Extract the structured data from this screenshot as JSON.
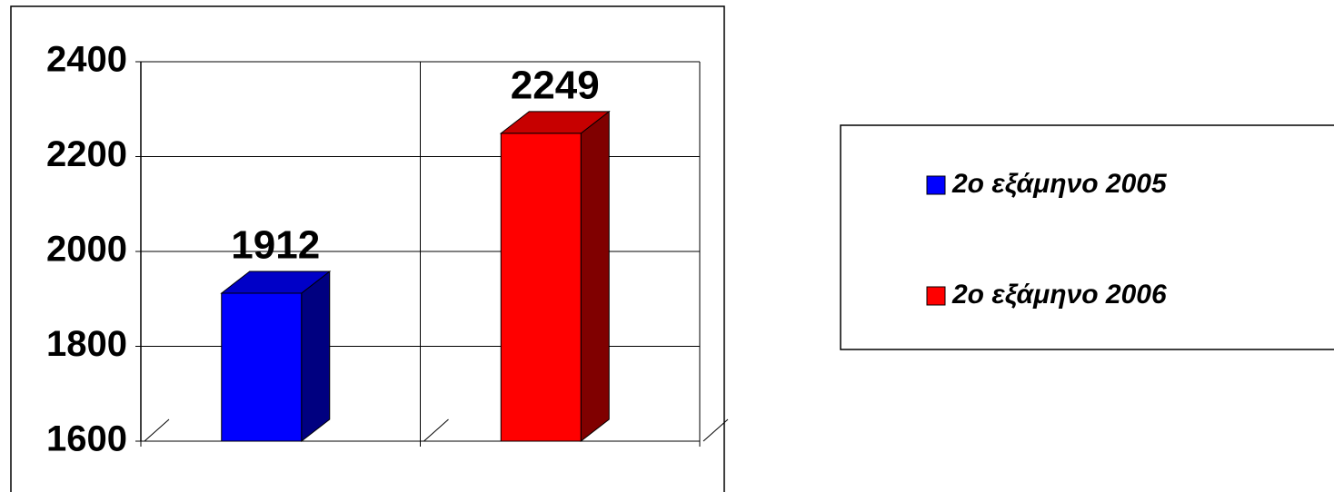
{
  "chart_data": {
    "type": "bar3d",
    "categories": [
      null,
      null
    ],
    "series": [
      {
        "name": "2ο εξάμηνο 2005",
        "color": "#0000ff",
        "values": [
          1912,
          null
        ]
      },
      {
        "name": "2ο εξάμηνο 2006",
        "color": "#ff0000",
        "values": [
          null,
          2249
        ]
      }
    ],
    "ylim": [
      1600,
      2400
    ],
    "yticks": [
      1600,
      1800,
      2000,
      2200,
      2400
    ],
    "grid": true,
    "legend": "right"
  }
}
